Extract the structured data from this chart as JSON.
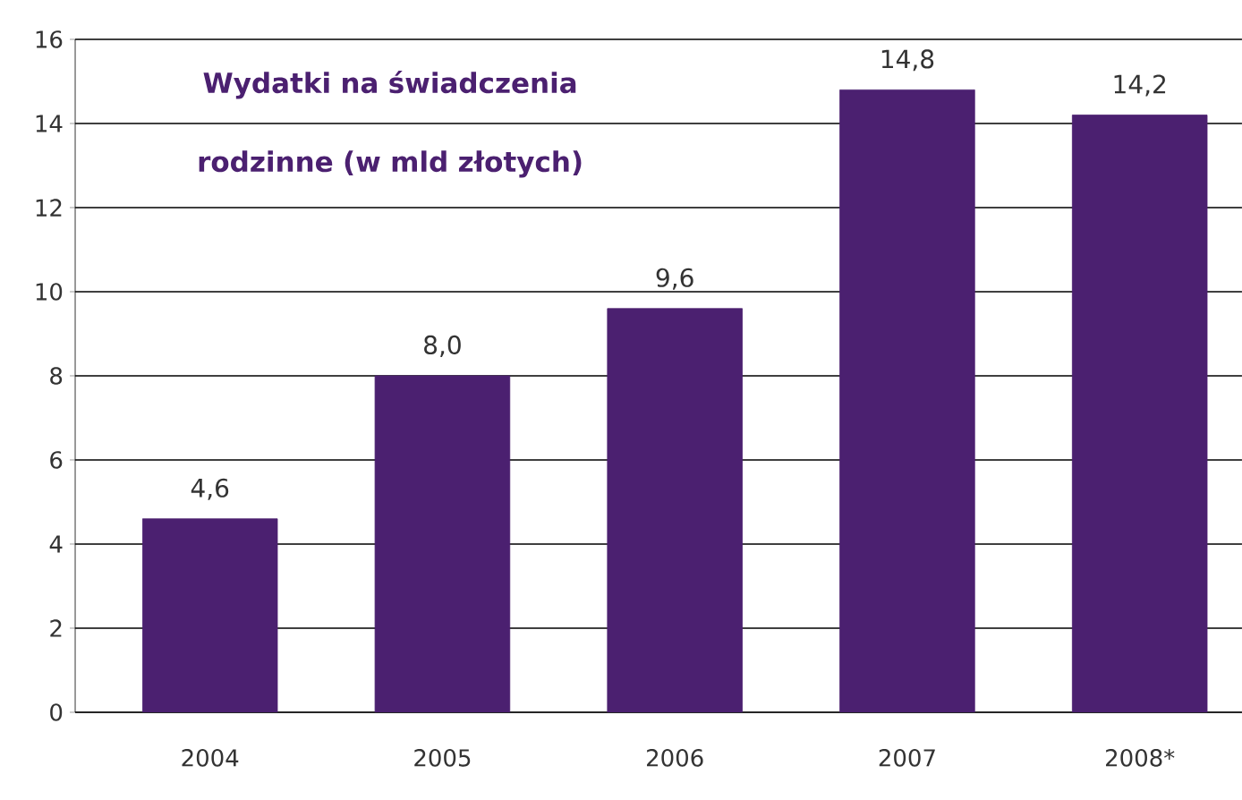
{
  "chart_data": {
    "type": "bar",
    "title": "Wydatki na świadczenia rodzinne (w mld złotych)",
    "categories": [
      "2004",
      "2005",
      "2006",
      "2007",
      "2008*"
    ],
    "values": [
      4.6,
      8.0,
      9.6,
      14.8,
      14.2
    ],
    "value_labels": [
      "4,6",
      "8,0",
      "9,6",
      "14,8",
      "14,2"
    ],
    "color": "#4b2070",
    "ylim": [
      0,
      16
    ],
    "yticks": [
      0,
      2,
      4,
      6,
      8,
      10,
      12,
      14,
      16
    ],
    "grid": "y"
  }
}
